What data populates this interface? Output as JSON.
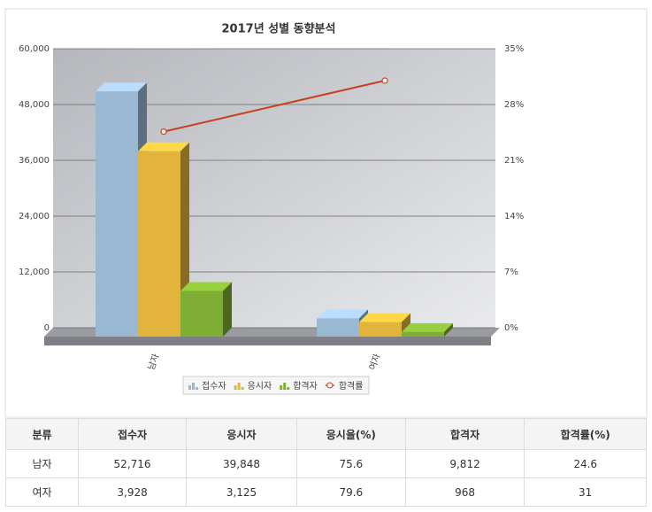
{
  "chart_data": {
    "type": "bar",
    "title": "2017년 성별 동향분석",
    "categories": [
      "남자",
      "여자"
    ],
    "series": [
      {
        "name": "접수자",
        "color": "#9bb8d3",
        "values": [
          52716,
          3928
        ]
      },
      {
        "name": "응시자",
        "color": "#e2b43c",
        "values": [
          39848,
          3125
        ]
      },
      {
        "name": "합격자",
        "color": "#7fae34",
        "values": [
          9812,
          968
        ]
      },
      {
        "name": "합격률",
        "color": "#c8401e",
        "type": "line",
        "axis": "y2",
        "values": [
          24.6,
          31
        ]
      }
    ],
    "ylim": [
      0,
      60000
    ],
    "yticks": [
      0,
      {
        "value": 12000,
        "label": "12,000"
      },
      {
        "value": 24000,
        "label": "24,000"
      },
      {
        "value": 36000,
        "label": "36,000"
      },
      {
        "value": 48000,
        "label": "48,000"
      },
      {
        "value": 60000,
        "label": "60,000"
      }
    ],
    "y2lim": [
      0,
      35
    ],
    "y2ticks": [
      {
        "value": 0,
        "label": "0%"
      },
      {
        "value": 7,
        "label": "7%"
      },
      {
        "value": 14,
        "label": "14%"
      },
      {
        "value": 21,
        "label": "21%"
      },
      {
        "value": 28,
        "label": "28%"
      },
      {
        "value": 35,
        "label": "35%"
      }
    ],
    "grid": true,
    "legend": "bottom"
  },
  "table": {
    "header": [
      "분류",
      "접수자",
      "응시자",
      "응시율(%)",
      "합격자",
      "합격률(%)"
    ],
    "rows": [
      [
        "남자",
        "52,716",
        "39,848",
        "75.6",
        "9,812",
        "24.6"
      ],
      [
        "여자",
        "3,928",
        "3,125",
        "79.6",
        "968",
        "31"
      ]
    ]
  }
}
